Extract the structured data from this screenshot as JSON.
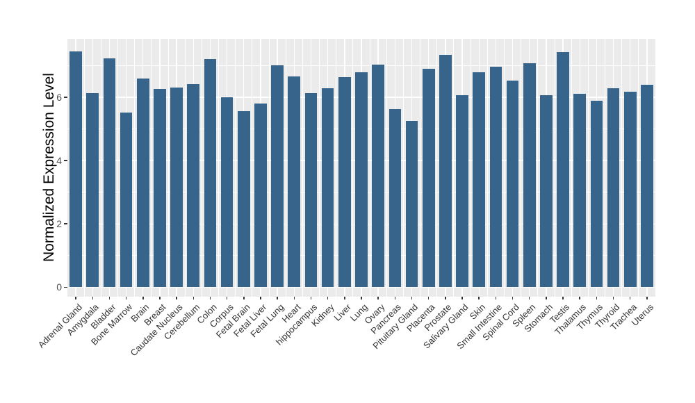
{
  "chart_data": {
    "type": "bar",
    "title": "",
    "xlabel": "",
    "ylabel": "Normalized Expression Level",
    "ylim": [
      0,
      7.83
    ],
    "yticks_major": [
      0,
      2,
      4,
      6
    ],
    "yticks_minor": [
      1,
      3,
      5,
      7
    ],
    "grid": true,
    "legend": false,
    "bar_color": "#36648B",
    "panel_bg": "#EBEBEB",
    "grid_color": "#FFFFFF",
    "figure_bg": "#FFFFFF",
    "categories": [
      "Adrenal Gland",
      "Amygdala",
      "Bladder",
      "Bone Marrow",
      "Brain",
      "Breast",
      "Caudate Nucleus",
      "Cerebellum",
      "Colon",
      "Corpus",
      "Fetal Brain",
      "Fetal Liver",
      "Fetal Lung",
      "Heart",
      "hippocampus",
      "Kidney",
      "Liver",
      "Lung",
      "Ovary",
      "Pancreas",
      "Pituitary Gland",
      "Placenta",
      "Prostate",
      "Salivary Gland",
      "Skin",
      "Small Intestine",
      "Spinal Cord",
      "Spleen",
      "Stomach",
      "Testis",
      "Thalamus",
      "Thymus",
      "Thyroid",
      "Trachea",
      "Uterus"
    ],
    "values": [
      7.45,
      6.13,
      7.23,
      5.52,
      6.6,
      6.27,
      6.31,
      6.42,
      7.21,
      6.0,
      5.56,
      5.8,
      7.02,
      6.66,
      6.13,
      6.29,
      6.63,
      6.78,
      7.03,
      5.63,
      5.25,
      6.89,
      7.35,
      6.07,
      6.8,
      6.96,
      6.52,
      7.07,
      6.06,
      7.43,
      6.11,
      5.89,
      6.28,
      6.18,
      6.4
    ]
  }
}
